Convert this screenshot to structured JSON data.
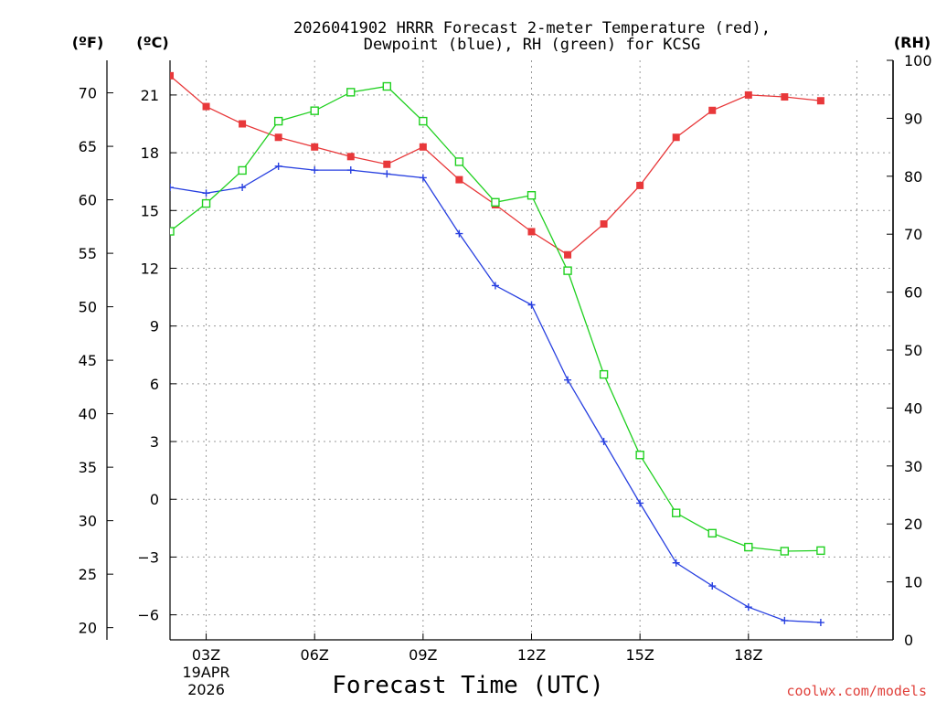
{
  "chart_data": {
    "type": "line",
    "title_line1": "2026041902 HRRR Forecast 2-meter Temperature (red),",
    "title_line2": "Dewpoint (blue), RH (green) for KCSG",
    "xlabel": "Forecast Time (UTC)",
    "credit": "coolwx.com/models",
    "units": {
      "fahrenheit": "(ºF)",
      "celsius": "(ºC)",
      "rh": "(RH)"
    },
    "x_range": [
      2,
      22
    ],
    "x_ticks": [
      {
        "x": 3,
        "label": "03Z",
        "sub1": "19APR",
        "sub2": "2026"
      },
      {
        "x": 6,
        "label": "06Z"
      },
      {
        "x": 9,
        "label": "09Z"
      },
      {
        "x": 12,
        "label": "12Z"
      },
      {
        "x": 15,
        "label": "15Z"
      },
      {
        "x": 18,
        "label": "18Z"
      }
    ],
    "celsius_range": [
      -7.3,
      22.8
    ],
    "celsius_ticks": [
      -6,
      -3,
      0,
      3,
      6,
      9,
      12,
      15,
      18,
      21
    ],
    "fahrenheit_ticks": [
      20,
      25,
      30,
      35,
      40,
      45,
      50,
      55,
      60,
      65,
      70
    ],
    "rh_range": [
      0,
      100
    ],
    "rh_ticks": [
      0,
      10,
      20,
      30,
      40,
      50,
      60,
      70,
      80,
      90,
      100
    ],
    "colors": {
      "temperature": "#e8383a",
      "dewpoint": "#2840e0",
      "rh": "#20d020",
      "grid": "#999999"
    },
    "series": [
      {
        "name": "Temperature",
        "axis": "celsius",
        "marker": "filled-square",
        "x": [
          2,
          3,
          4,
          5,
          6,
          7,
          8,
          9,
          10,
          11,
          12,
          13,
          14,
          15,
          16,
          17,
          18,
          19,
          20
        ],
        "values": [
          22.0,
          20.4,
          19.5,
          18.8,
          18.3,
          17.8,
          17.4,
          18.3,
          16.6,
          15.3,
          13.9,
          12.7,
          14.3,
          16.3,
          18.8,
          20.2,
          21.0,
          20.9,
          20.7
        ]
      },
      {
        "name": "Dewpoint",
        "axis": "celsius",
        "marker": "plus",
        "x": [
          2,
          3,
          4,
          5,
          6,
          7,
          8,
          9,
          10,
          11,
          12,
          13,
          14,
          15,
          16,
          17,
          18,
          19,
          20
        ],
        "values": [
          16.2,
          15.9,
          16.2,
          17.3,
          17.1,
          17.1,
          16.9,
          16.7,
          13.8,
          11.1,
          10.1,
          6.2,
          3.0,
          -0.2,
          -3.3,
          -4.5,
          -5.6,
          -6.3,
          -6.4
        ]
      },
      {
        "name": "RH",
        "axis": "rh",
        "marker": "open-square",
        "x": [
          2,
          3,
          4,
          5,
          6,
          7,
          8,
          9,
          10,
          11,
          12,
          13,
          14,
          15,
          16,
          17,
          18,
          19,
          20
        ],
        "values": [
          70.5,
          75.3,
          81.0,
          89.5,
          91.3,
          94.5,
          95.5,
          89.5,
          82.5,
          75.5,
          76.7,
          63.7,
          45.8,
          31.9,
          21.9,
          18.4,
          16.0,
          15.3,
          15.4
        ]
      }
    ]
  }
}
